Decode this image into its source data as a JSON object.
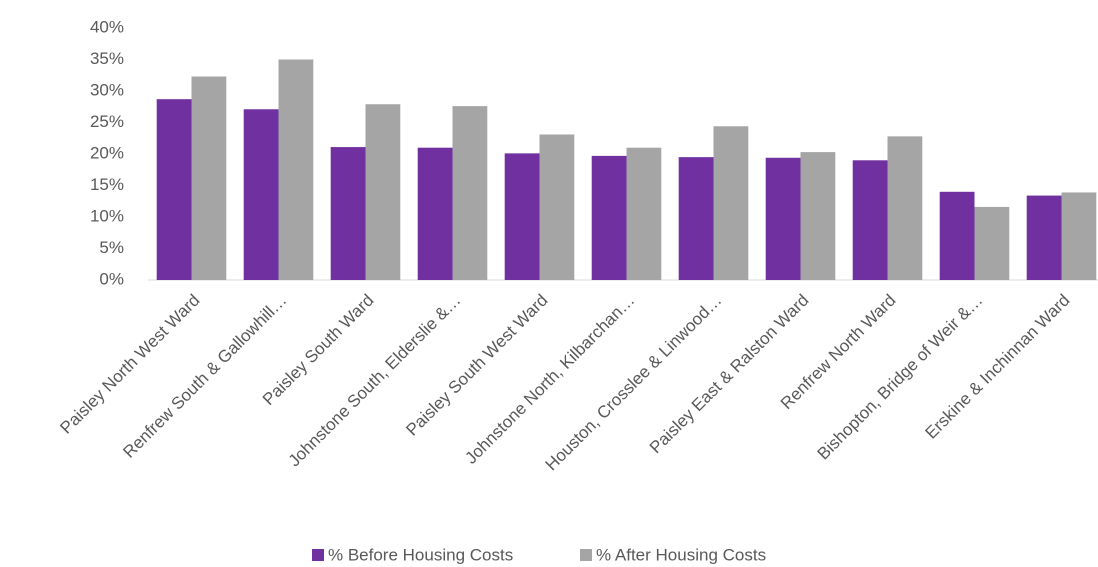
{
  "chart_data": {
    "type": "bar",
    "categories": [
      "Paisley North West Ward",
      "Renfrew South & Gallowhill…",
      "Paisley South Ward",
      "Johnstone South, Elderslie &…",
      "Paisley South West Ward",
      "Johnstone North, Kilbarchan…",
      "Houston, Crosslee & Linwood…",
      "Paisley East & Ralston Ward",
      "Renfrew North Ward",
      "Bishopton, Bridge of Weir &…",
      "Erskine & Inchinnan Ward"
    ],
    "series": [
      {
        "name": "% Before Housing Costs",
        "color": "#7030a0",
        "values": [
          28.7,
          27.1,
          21.1,
          21.0,
          20.1,
          19.7,
          19.5,
          19.4,
          19.0,
          14.0,
          13.4
        ]
      },
      {
        "name": "% After Housing Costs",
        "color": "#a5a5a5",
        "values": [
          32.3,
          35.0,
          27.9,
          27.6,
          23.1,
          21.0,
          24.4,
          20.3,
          22.8,
          11.6,
          13.9
        ]
      }
    ],
    "ylim": [
      0,
      40
    ],
    "yticks": [
      {
        "value": 0,
        "label": "0%"
      },
      {
        "value": 5,
        "label": "5%"
      },
      {
        "value": 10,
        "label": "10%"
      },
      {
        "value": 15,
        "label": "15%"
      },
      {
        "value": 20,
        "label": "20%"
      },
      {
        "value": 25,
        "label": "25%"
      },
      {
        "value": 30,
        "label": "30%"
      },
      {
        "value": 35,
        "label": "35%"
      },
      {
        "value": 40,
        "label": "40%"
      }
    ],
    "grid": false,
    "legend": "bottom"
  }
}
